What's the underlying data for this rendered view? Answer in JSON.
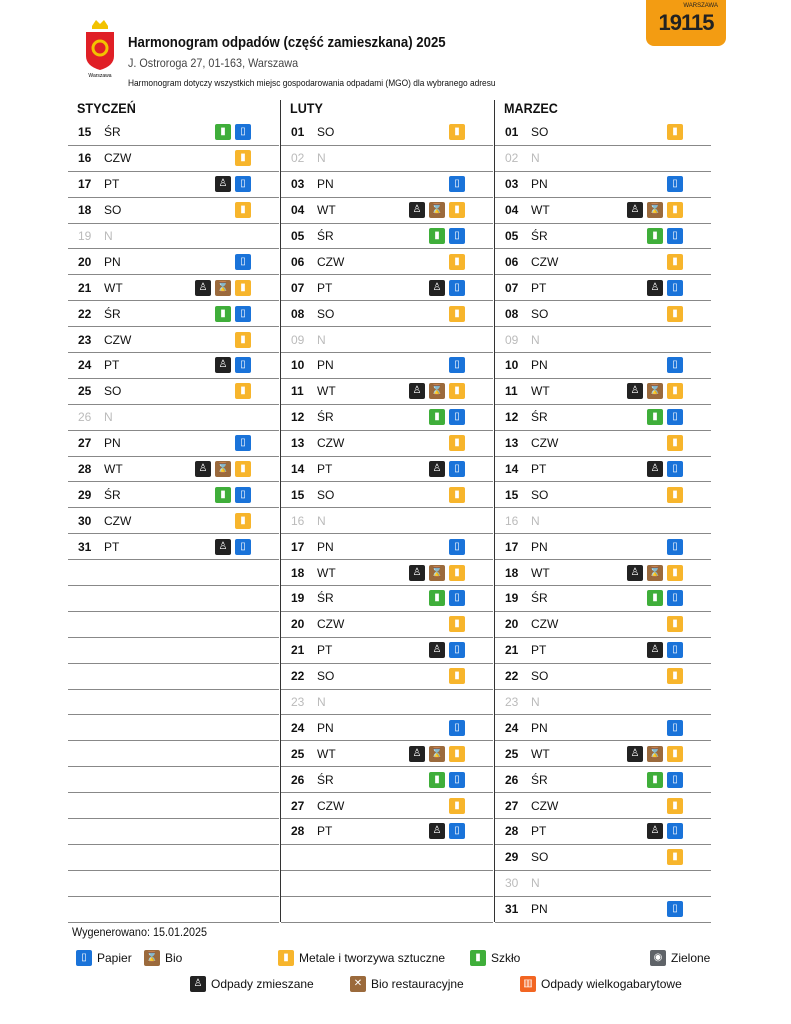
{
  "header": {
    "title": "Harmonogram odpadów (część zamieszkana) 2025",
    "address": "J. Ostroroga 27, 01-163, Warszawa",
    "note": "Harmonogram dotyczy wszystkich miejsc gospodarowania odpadami (MGO) dla wybranego adresu",
    "logo_text": "Warszawa",
    "badge_text": "19115",
    "badge_small": "WARSZAWA"
  },
  "colors": {
    "P": "#1a73d9",
    "B": "#9b6a3c",
    "M": "#f7b52c",
    "S": "#3fae3a",
    "Z": "#222222",
    "G": "#5f6368",
    "R": "#9b6a3c",
    "W": "#f26522"
  },
  "icons": {
    "P": "paper-icon",
    "B": "bio-icon",
    "M": "metal-plastic-icon",
    "S": "glass-icon",
    "Z": "mixed-waste-icon",
    "G": "green-waste-icon",
    "R": "restaurant-bio-icon",
    "W": "bulky-waste-icon"
  },
  "months": [
    {
      "name": "STYCZEŃ",
      "rows": [
        [
          "15",
          "ŚR",
          "SP"
        ],
        [
          "16",
          "CZW",
          "M"
        ],
        [
          "17",
          "PT",
          "ZP"
        ],
        [
          "18",
          "SO",
          "M"
        ],
        [
          "19",
          "N",
          ""
        ],
        [
          "20",
          "PN",
          "P"
        ],
        [
          "21",
          "WT",
          "ZBM"
        ],
        [
          "22",
          "ŚR",
          "SP"
        ],
        [
          "23",
          "CZW",
          "M"
        ],
        [
          "24",
          "PT",
          "ZP"
        ],
        [
          "25",
          "SO",
          "M"
        ],
        [
          "26",
          "N",
          ""
        ],
        [
          "27",
          "PN",
          "P"
        ],
        [
          "28",
          "WT",
          "ZBM"
        ],
        [
          "29",
          "ŚR",
          "SP"
        ],
        [
          "30",
          "CZW",
          "M"
        ],
        [
          "31",
          "PT",
          "ZP"
        ]
      ]
    },
    {
      "name": "LUTY",
      "rows": [
        [
          "01",
          "SO",
          "M"
        ],
        [
          "02",
          "N",
          ""
        ],
        [
          "03",
          "PN",
          "P"
        ],
        [
          "04",
          "WT",
          "ZBM"
        ],
        [
          "05",
          "ŚR",
          "SP"
        ],
        [
          "06",
          "CZW",
          "M"
        ],
        [
          "07",
          "PT",
          "ZP"
        ],
        [
          "08",
          "SO",
          "M"
        ],
        [
          "09",
          "N",
          ""
        ],
        [
          "10",
          "PN",
          "P"
        ],
        [
          "11",
          "WT",
          "ZBM"
        ],
        [
          "12",
          "ŚR",
          "SP"
        ],
        [
          "13",
          "CZW",
          "M"
        ],
        [
          "14",
          "PT",
          "ZP"
        ],
        [
          "15",
          "SO",
          "M"
        ],
        [
          "16",
          "N",
          ""
        ],
        [
          "17",
          "PN",
          "P"
        ],
        [
          "18",
          "WT",
          "ZBM"
        ],
        [
          "19",
          "ŚR",
          "SP"
        ],
        [
          "20",
          "CZW",
          "M"
        ],
        [
          "21",
          "PT",
          "ZP"
        ],
        [
          "22",
          "SO",
          "M"
        ],
        [
          "23",
          "N",
          ""
        ],
        [
          "24",
          "PN",
          "P"
        ],
        [
          "25",
          "WT",
          "ZBM"
        ],
        [
          "26",
          "ŚR",
          "SP"
        ],
        [
          "27",
          "CZW",
          "M"
        ],
        [
          "28",
          "PT",
          "ZP"
        ]
      ]
    },
    {
      "name": "MARZEC",
      "rows": [
        [
          "01",
          "SO",
          "M"
        ],
        [
          "02",
          "N",
          ""
        ],
        [
          "03",
          "PN",
          "P"
        ],
        [
          "04",
          "WT",
          "ZBM"
        ],
        [
          "05",
          "ŚR",
          "SP"
        ],
        [
          "06",
          "CZW",
          "M"
        ],
        [
          "07",
          "PT",
          "ZP"
        ],
        [
          "08",
          "SO",
          "M"
        ],
        [
          "09",
          "N",
          ""
        ],
        [
          "10",
          "PN",
          "P"
        ],
        [
          "11",
          "WT",
          "ZBM"
        ],
        [
          "12",
          "ŚR",
          "SP"
        ],
        [
          "13",
          "CZW",
          "M"
        ],
        [
          "14",
          "PT",
          "ZP"
        ],
        [
          "15",
          "SO",
          "M"
        ],
        [
          "16",
          "N",
          ""
        ],
        [
          "17",
          "PN",
          "P"
        ],
        [
          "18",
          "WT",
          "ZBM"
        ],
        [
          "19",
          "ŚR",
          "SP"
        ],
        [
          "20",
          "CZW",
          "M"
        ],
        [
          "21",
          "PT",
          "ZP"
        ],
        [
          "22",
          "SO",
          "M"
        ],
        [
          "23",
          "N",
          ""
        ],
        [
          "24",
          "PN",
          "P"
        ],
        [
          "25",
          "WT",
          "ZBM"
        ],
        [
          "26",
          "ŚR",
          "SP"
        ],
        [
          "27",
          "CZW",
          "M"
        ],
        [
          "28",
          "PT",
          "ZP"
        ],
        [
          "29",
          "SO",
          "M"
        ],
        [
          "30",
          "N",
          ""
        ],
        [
          "31",
          "PN",
          "P"
        ]
      ]
    }
  ],
  "generated": "Wygenerowano: 15.01.2025",
  "legend": [
    {
      "code": "P",
      "label": "Papier"
    },
    {
      "code": "B",
      "label": "Bio"
    },
    {
      "code": "M",
      "label": "Metale i tworzywa sztuczne"
    },
    {
      "code": "S",
      "label": "Szkło"
    },
    {
      "code": "G",
      "label": "Zielone"
    },
    {
      "code": "Z",
      "label": "Odpady zmieszane"
    },
    {
      "code": "R",
      "label": "Bio restauracyjne"
    },
    {
      "code": "W",
      "label": "Odpady wielkogabarytowe"
    }
  ]
}
